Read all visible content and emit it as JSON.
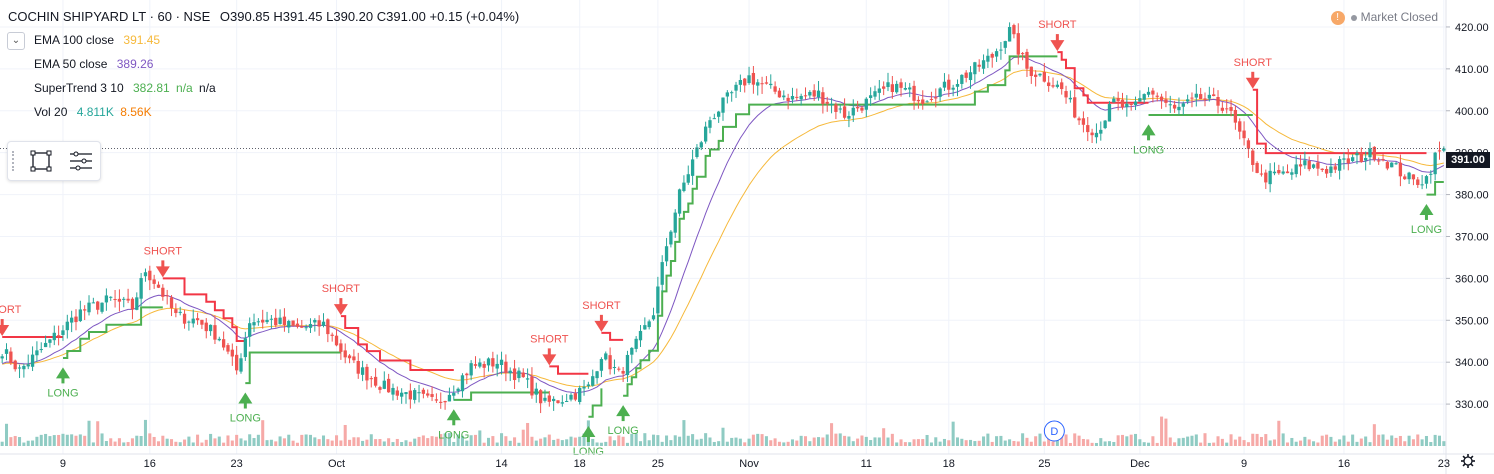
{
  "header": {
    "symbol": "COCHIN SHIPYARD LT · 60 · NSE",
    "ohlc": "O390.85 H391.45 L390.20 C391.00",
    "change": "+0.15 (+0.04%)",
    "collapse_icon": "chevron-down-icon"
  },
  "indicators": [
    {
      "name": "EMA 100 close",
      "values": [
        "391.45"
      ],
      "colors": [
        "#f6b93b"
      ]
    },
    {
      "name": "EMA 50 close",
      "values": [
        "389.26"
      ],
      "colors": [
        "#7e57c2"
      ]
    },
    {
      "name": "SuperTrend 3 10",
      "values": [
        "382.81",
        "n/a",
        "n/a"
      ],
      "colors": [
        "#4caf50",
        "#4caf50",
        "#131722"
      ]
    },
    {
      "name": "Vol 20",
      "values": [
        "4.811K",
        "8.56K"
      ],
      "colors": [
        "#26a69a",
        "#f57c00"
      ]
    }
  ],
  "market_status": "Market Closed",
  "current_price_label": "391.00",
  "toolbox": {
    "icons": [
      "rectangle-select-icon",
      "list-settings-icon"
    ]
  },
  "d_marker": "D",
  "colors": {
    "up": "#26a69a",
    "down": "#ef5350",
    "supertrend_up": "#4caf50",
    "supertrend_down": "#f23645",
    "ema100": "#f6b93b",
    "ema50": "#7e57c2",
    "grid": "#f0f3fa",
    "vol_up": "#8fcbc3",
    "vol_down": "#f6a9a7"
  },
  "chart_data": {
    "type": "candlestick",
    "ylim": [
      320,
      425
    ],
    "yticks": [
      "330.00",
      "340.00",
      "350.00",
      "360.00",
      "370.00",
      "380.00",
      "390.00",
      "400.00",
      "410.00",
      "420.00"
    ],
    "xticks": [
      {
        "label": "9",
        "bar": 14
      },
      {
        "label": "16",
        "bar": 34
      },
      {
        "label": "23",
        "bar": 54
      },
      {
        "label": "Oct",
        "bar": 77
      },
      {
        "label": "14",
        "bar": 115
      },
      {
        "label": "18",
        "bar": 133
      },
      {
        "label": "25",
        "bar": 151
      },
      {
        "label": "Nov",
        "bar": 172
      },
      {
        "label": "11",
        "bar": 199
      },
      {
        "label": "18",
        "bar": 218
      },
      {
        "label": "25",
        "bar": 240
      },
      {
        "label": "Dec",
        "bar": 262
      },
      {
        "label": "9",
        "bar": 286
      },
      {
        "label": "16",
        "bar": 309
      },
      {
        "label": "23",
        "bar": 332
      }
    ],
    "bars": 333,
    "anchors": [
      [
        0,
        343
      ],
      [
        4,
        338
      ],
      [
        10,
        344
      ],
      [
        18,
        352
      ],
      [
        25,
        355
      ],
      [
        30,
        353
      ],
      [
        33,
        362
      ],
      [
        36,
        358
      ],
      [
        40,
        351
      ],
      [
        45,
        350
      ],
      [
        50,
        346
      ],
      [
        54,
        338
      ],
      [
        57,
        350
      ],
      [
        62,
        350
      ],
      [
        68,
        348
      ],
      [
        74,
        349
      ],
      [
        80,
        340
      ],
      [
        88,
        334
      ],
      [
        95,
        332
      ],
      [
        100,
        330
      ],
      [
        104,
        334
      ],
      [
        108,
        339
      ],
      [
        114,
        340
      ],
      [
        120,
        336
      ],
      [
        125,
        330
      ],
      [
        131,
        332
      ],
      [
        135,
        334
      ],
      [
        138,
        342
      ],
      [
        142,
        337
      ],
      [
        146,
        344
      ],
      [
        150,
        352
      ],
      [
        153,
        368
      ],
      [
        156,
        380
      ],
      [
        159,
        388
      ],
      [
        163,
        398
      ],
      [
        168,
        404
      ],
      [
        172,
        408
      ],
      [
        177,
        405
      ],
      [
        182,
        403
      ],
      [
        188,
        404
      ],
      [
        194,
        399
      ],
      [
        199,
        402
      ],
      [
        205,
        406
      ],
      [
        212,
        403
      ],
      [
        218,
        406
      ],
      [
        224,
        410
      ],
      [
        228,
        413
      ],
      [
        232,
        419
      ],
      [
        236,
        410
      ],
      [
        240,
        408
      ],
      [
        244,
        405
      ],
      [
        248,
        398
      ],
      [
        252,
        395
      ],
      [
        256,
        402
      ],
      [
        260,
        400
      ],
      [
        264,
        405
      ],
      [
        270,
        400
      ],
      [
        276,
        403
      ],
      [
        282,
        401
      ],
      [
        286,
        392
      ],
      [
        290,
        384
      ],
      [
        296,
        385
      ],
      [
        300,
        387
      ],
      [
        305,
        386
      ],
      [
        310,
        388
      ],
      [
        316,
        390
      ],
      [
        320,
        387
      ],
      [
        325,
        383
      ],
      [
        328,
        384
      ],
      [
        330,
        389
      ],
      [
        332,
        391
      ]
    ],
    "current_price": 391.0,
    "signals": [
      {
        "type": "SHORT",
        "bar": 0,
        "price": 346
      },
      {
        "type": "LONG",
        "bar": 14,
        "price": 339
      },
      {
        "type": "SHORT",
        "bar": 37,
        "price": 360
      },
      {
        "type": "LONG",
        "bar": 56,
        "price": 333
      },
      {
        "type": "SHORT",
        "bar": 78,
        "price": 351
      },
      {
        "type": "LONG",
        "bar": 104,
        "price": 329
      },
      {
        "type": "SHORT",
        "bar": 126,
        "price": 339
      },
      {
        "type": "LONG",
        "bar": 135,
        "price": 325
      },
      {
        "type": "SHORT",
        "bar": 138,
        "price": 347
      },
      {
        "type": "LONG",
        "bar": 143,
        "price": 330
      },
      {
        "type": "SHORT",
        "bar": 243,
        "price": 414
      },
      {
        "type": "LONG",
        "bar": 264,
        "price": 397
      },
      {
        "type": "SHORT",
        "bar": 288,
        "price": 405
      },
      {
        "type": "LONG",
        "bar": 328,
        "price": 378
      }
    ]
  }
}
